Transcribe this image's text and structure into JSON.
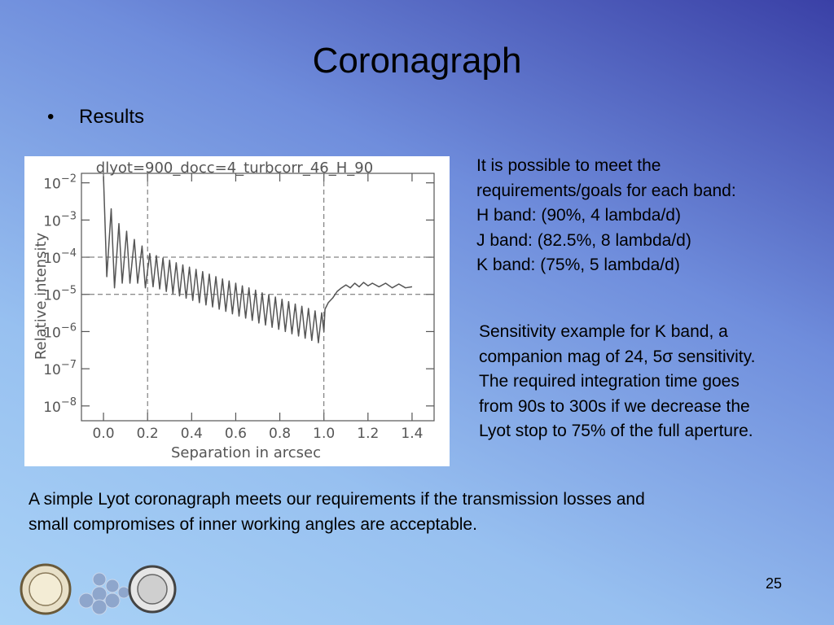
{
  "header": {
    "title": "Coronagraph"
  },
  "bullets": [
    "Results"
  ],
  "chart_data": {
    "type": "line",
    "title": "dlyot=900_docc=4_turbcorr_46_H_90",
    "xlabel": "Separation in arcsec",
    "ylabel": "Relative intensity",
    "log_y": true,
    "color": "#555555",
    "xlim": [
      -0.1,
      1.5
    ],
    "ylim": [
      4e-09,
      0.018
    ],
    "xticks": [
      {
        "value": 0,
        "label": "0.0"
      },
      0.2,
      0.4,
      0.6,
      0.8,
      {
        "value": 1,
        "label": "1.0"
      },
      1.2,
      1.4
    ],
    "yticks": [
      {
        "value": 0.01,
        "label": "10−2"
      },
      {
        "value": 0.001,
        "label": "10−3"
      },
      {
        "value": 0.0001,
        "label": "10−4"
      },
      {
        "value": 1e-05,
        "label": "10−5"
      },
      {
        "value": 1e-06,
        "label": "10−6"
      },
      {
        "value": 1e-07,
        "label": "10−7"
      },
      {
        "value": 1e-08,
        "label": "10−8"
      }
    ],
    "reference_lines": {
      "x": [
        0.2,
        1.0
      ],
      "y": [
        0.0001,
        1e-05
      ]
    },
    "x": [
      0.0,
      0.015,
      0.035,
      0.05,
      0.07,
      0.085,
      0.105,
      0.12,
      0.14,
      0.155,
      0.175,
      0.19,
      0.21,
      0.225,
      0.24,
      0.255,
      0.27,
      0.285,
      0.3,
      0.315,
      0.33,
      0.345,
      0.36,
      0.375,
      0.39,
      0.405,
      0.42,
      0.435,
      0.45,
      0.465,
      0.48,
      0.495,
      0.51,
      0.525,
      0.54,
      0.555,
      0.57,
      0.585,
      0.6,
      0.615,
      0.63,
      0.645,
      0.66,
      0.675,
      0.69,
      0.705,
      0.72,
      0.735,
      0.75,
      0.765,
      0.78,
      0.795,
      0.81,
      0.825,
      0.84,
      0.855,
      0.87,
      0.885,
      0.9,
      0.915,
      0.93,
      0.945,
      0.96,
      0.975,
      0.99,
      1.0,
      1.005,
      1.02,
      1.04,
      1.06,
      1.08,
      1.1,
      1.12,
      1.14,
      1.16,
      1.18,
      1.2,
      1.22,
      1.25,
      1.28,
      1.31,
      1.34,
      1.37,
      1.4
    ],
    "values": [
      0.015,
      3e-05,
      0.002,
      1.5e-05,
      0.0008,
      2e-05,
      0.0005,
      2e-05,
      0.0003,
      2e-05,
      0.0002,
      1.5e-05,
      0.000126,
      1.6e-05,
      0.00011,
      1.4e-05,
      9.5e-05,
      1.2e-05,
      8.3e-05,
      1.05e-05,
      7.1e-05,
      9.1e-06,
      6.2e-05,
      7.9e-06,
      5.4e-05,
      6.9e-06,
      4.7e-05,
      6e-06,
      4.1e-05,
      5.2e-06,
      3.5e-05,
      4.6e-06,
      3e-05,
      4e-06,
      2.6e-05,
      3.5e-06,
      2.3e-05,
      3e-06,
      2e-05,
      2.6e-06,
      1.7e-05,
      2.3e-06,
      1.5e-05,
      2e-06,
      1.3e-05,
      1.7e-06,
      1.1e-05,
      1.5e-06,
      9.8e-06,
      1.3e-06,
      8.5e-06,
      1.15e-06,
      7.4e-06,
      1e-06,
      6.4e-06,
      8.7e-07,
      5.5e-06,
      7.6e-07,
      4.8e-06,
      6.6e-07,
      4.2e-06,
      5.8e-07,
      3.6e-06,
      5e-07,
      3.2e-06,
      1e-06,
      4e-06,
      6e-06,
      8e-06,
      1.2e-05,
      1.5e-05,
      1.8e-05,
      1.5e-05,
      2e-05,
      1.6e-05,
      2.1e-05,
      1.7e-05,
      2e-05,
      1.6e-05,
      2e-05,
      1.5e-05,
      1.9e-05,
      1.5e-05,
      1.6e-05
    ]
  },
  "requirements": [
    "It is possible to meet the",
    "requirements/goals for each band:",
    "H band: (90%, 4 lambda/d)",
    "J band: (82.5%, 8 lambda/d)",
    "K band: (75%, 5 lambda/d)"
  ],
  "sensitivity": [
    "Sensitivity example for K band, a",
    "companion mag of 24, 5σ sensitivity.",
    "The required integration time goes",
    "from 90s to 300s if we decrease the",
    "Lyot stop to 75% of the full aperture."
  ],
  "conclusion": [
    "A simple Lyot coronagraph meets our requirements if the transmission losses and",
    "small compromises of inner working angles are acceptable."
  ],
  "footer": {
    "page_number": "25"
  }
}
